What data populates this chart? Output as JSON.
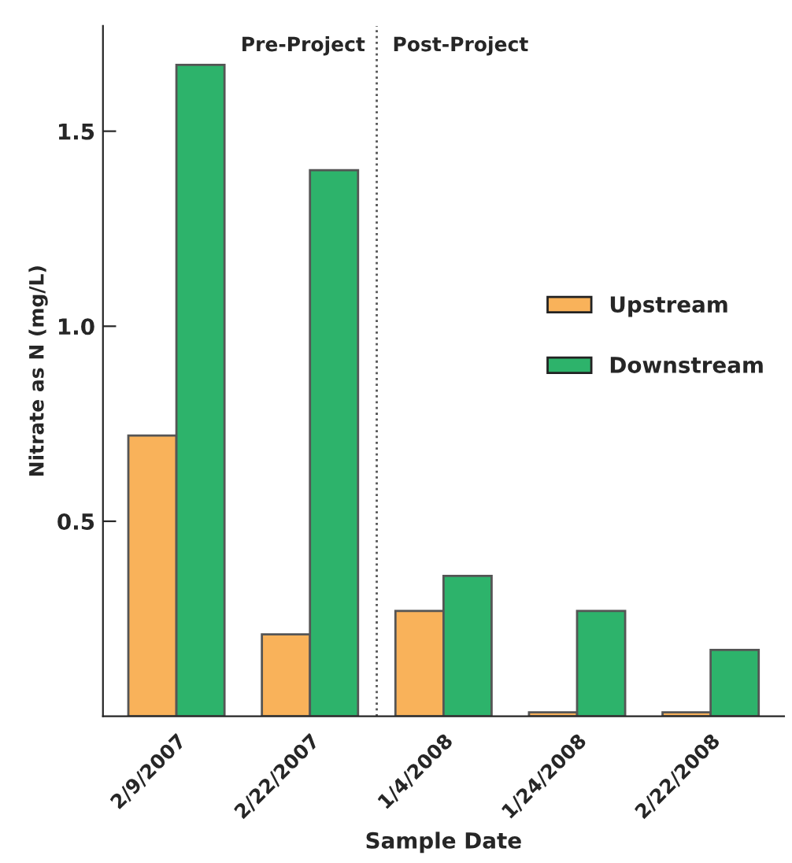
{
  "chart_data": {
    "type": "bar",
    "xlabel": "Sample Date",
    "ylabel": "Nitrate as N (mg/L)",
    "categories": [
      "2/9/2007",
      "2/22/2007",
      "1/4/2008",
      "1/24/2008",
      "2/22/2008"
    ],
    "series": [
      {
        "name": "Upstream",
        "color": "#f9b25a",
        "values": [
          0.72,
          0.21,
          0.27,
          0.01,
          0.01
        ]
      },
      {
        "name": "Downstream",
        "color": "#2db36b",
        "values": [
          1.67,
          1.4,
          0.36,
          0.27,
          0.17
        ]
      }
    ],
    "ylim": [
      0,
      1.77
    ],
    "yticks": [
      {
        "value": 0.5,
        "label": "0.5"
      },
      {
        "value": 1.0,
        "label": "1.0"
      },
      {
        "value": 1.5,
        "label": "1.5"
      }
    ],
    "annotations": [
      "Pre-Project",
      "Post-Project"
    ],
    "grid": false,
    "legend": "right"
  }
}
